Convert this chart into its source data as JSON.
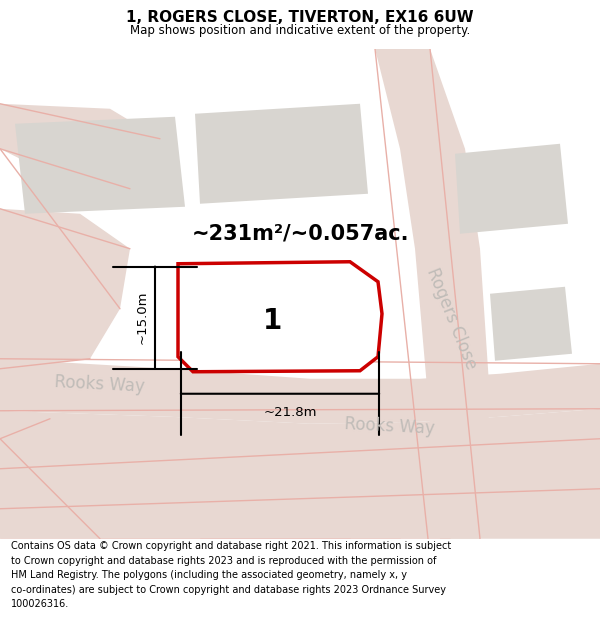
{
  "title": "1, ROGERS CLOSE, TIVERTON, EX16 6UW",
  "subtitle": "Map shows position and indicative extent of the property.",
  "footer": "Contains OS data © Crown copyright and database right 2021. This information is subject\nto Crown copyright and database rights 2023 and is reproduced with the permission of\nHM Land Registry. The polygons (including the associated geometry, namely x, y\nco-ordinates) are subject to Crown copyright and database rights 2023 Ordnance Survey\n100026316.",
  "area_text": "~231m²/~0.057ac.",
  "dim_width": "~21.8m",
  "dim_height": "~15.0m",
  "plot_label": "1",
  "map_bg": "#f2f0ee",
  "plot_fill": "#ffffff",
  "plot_edge": "#cc0000",
  "road_fill": "#e8d8d2",
  "building_color": "#d8d5d0",
  "road_line_color": "#e8b0a8",
  "road_label_color": "#c0bcb8",
  "rooks_way_label": "Rooks Way",
  "rogers_close_label": "Rogers Close"
}
